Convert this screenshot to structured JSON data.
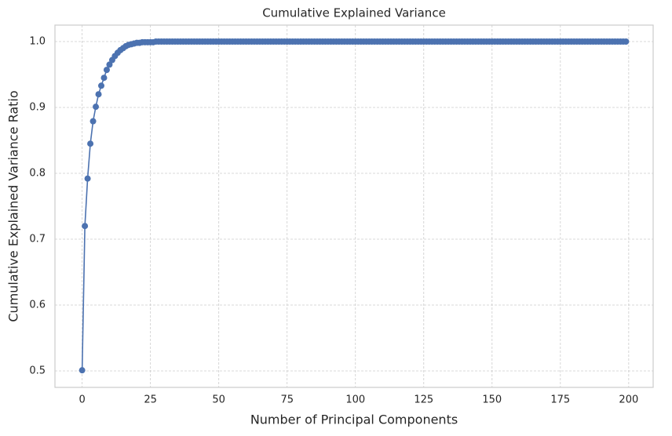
{
  "chart_data": {
    "type": "line",
    "title": "Cumulative Explained Variance",
    "x_label": "Number of Principal Components",
    "y_label": "Cumulative Explained Variance Ratio",
    "x": [
      0,
      1,
      2,
      3,
      4,
      5,
      6,
      7,
      8,
      9,
      10,
      11,
      12,
      13,
      14,
      15,
      16,
      17,
      18,
      19,
      20,
      21,
      22,
      23,
      24,
      25,
      26,
      27,
      28,
      29,
      30,
      31,
      32,
      33,
      34,
      35,
      36,
      37,
      38,
      39,
      40,
      41,
      42,
      43,
      44,
      45,
      46,
      47,
      48,
      49,
      50,
      51,
      52,
      53,
      54,
      55,
      56,
      57,
      58,
      59,
      60,
      61,
      62,
      63,
      64,
      65,
      66,
      67,
      68,
      69,
      70,
      71,
      72,
      73,
      74,
      75,
      76,
      77,
      78,
      79,
      80,
      81,
      82,
      83,
      84,
      85,
      86,
      87,
      88,
      89,
      90,
      91,
      92,
      93,
      94,
      95,
      96,
      97,
      98,
      99,
      100,
      101,
      102,
      103,
      104,
      105,
      106,
      107,
      108,
      109,
      110,
      111,
      112,
      113,
      114,
      115,
      116,
      117,
      118,
      119,
      120,
      121,
      122,
      123,
      124,
      125,
      126,
      127,
      128,
      129,
      130,
      131,
      132,
      133,
      134,
      135,
      136,
      137,
      138,
      139,
      140,
      141,
      142,
      143,
      144,
      145,
      146,
      147,
      148,
      149,
      150,
      151,
      152,
      153,
      154,
      155,
      156,
      157,
      158,
      159,
      160,
      161,
      162,
      163,
      164,
      165,
      166,
      167,
      168,
      169,
      170,
      171,
      172,
      173,
      174,
      175,
      176,
      177,
      178,
      179,
      180,
      181,
      182,
      183,
      184,
      185,
      186,
      187,
      188,
      189,
      190,
      191,
      192,
      193,
      194,
      195,
      196,
      197,
      198,
      199
    ],
    "series": [
      {
        "color": "#4c72b0",
        "values": [
          0.501,
          0.72,
          0.792,
          0.845,
          0.879,
          0.901,
          0.92,
          0.933,
          0.945,
          0.957,
          0.965,
          0.972,
          0.978,
          0.983,
          0.987,
          0.99,
          0.993,
          0.995,
          0.996,
          0.997,
          0.998,
          0.998,
          0.999,
          0.999,
          0.999,
          0.999,
          0.999,
          1,
          1,
          1,
          1,
          1,
          1,
          1,
          1,
          1,
          1,
          1,
          1,
          1,
          1,
          1,
          1,
          1,
          1,
          1,
          1,
          1,
          1,
          1,
          1,
          1,
          1,
          1,
          1,
          1,
          1,
          1,
          1,
          1,
          1,
          1,
          1,
          1,
          1,
          1,
          1,
          1,
          1,
          1,
          1,
          1,
          1,
          1,
          1,
          1,
          1,
          1,
          1,
          1,
          1,
          1,
          1,
          1,
          1,
          1,
          1,
          1,
          1,
          1,
          1,
          1,
          1,
          1,
          1,
          1,
          1,
          1,
          1,
          1,
          1,
          1,
          1,
          1,
          1,
          1,
          1,
          1,
          1,
          1,
          1,
          1,
          1,
          1,
          1,
          1,
          1,
          1,
          1,
          1,
          1,
          1,
          1,
          1,
          1,
          1,
          1,
          1,
          1,
          1,
          1,
          1,
          1,
          1,
          1,
          1,
          1,
          1,
          1,
          1,
          1,
          1,
          1,
          1,
          1,
          1,
          1,
          1,
          1,
          1,
          1,
          1,
          1,
          1,
          1,
          1,
          1,
          1,
          1,
          1,
          1,
          1,
          1,
          1,
          1,
          1,
          1,
          1,
          1,
          1,
          1,
          1,
          1,
          1,
          1,
          1,
          1,
          1,
          1,
          1,
          1,
          1,
          1,
          1,
          1,
          1,
          1,
          1,
          1,
          1,
          1,
          1,
          1,
          1,
          1,
          1,
          1,
          1,
          1,
          1
        ]
      }
    ],
    "xlim": [
      -9.95,
      208.95
    ],
    "xticks": [
      0,
      25,
      50,
      75,
      100,
      125,
      150,
      175,
      200
    ],
    "ylim": [
      0.475,
      1.025
    ],
    "yticks": [
      0.5,
      0.6,
      0.7,
      0.8,
      0.9,
      {
        "value": 1,
        "label": "1.0"
      }
    ],
    "grid": true
  }
}
